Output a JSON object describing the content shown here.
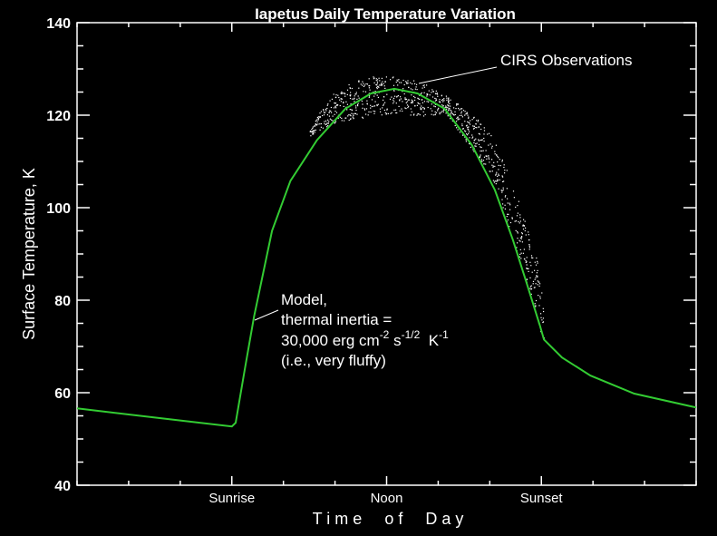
{
  "chart_data": {
    "type": "line",
    "title": "Iapetus Daily Temperature Variation",
    "xlabel": "T i m e     o f     D a y",
    "ylabel": "Surface Temperature, K",
    "xlim": [
      0,
      24
    ],
    "ylim": [
      40,
      140
    ],
    "y_ticks": [
      40,
      60,
      80,
      100,
      120,
      140
    ],
    "y_minor_step": 5,
    "x_ticks": [
      {
        "value": 6,
        "label": "Sunrise"
      },
      {
        "value": 12,
        "label": "Noon"
      },
      {
        "value": 18,
        "label": "Sunset"
      }
    ],
    "x_minor_step": 2,
    "grid": false,
    "colors": {
      "background": "#000000",
      "axes": "#ffffff",
      "model": "#33cc33",
      "observations": "#ffffff"
    },
    "series": [
      {
        "label_lines": [
          "Model,",
          "thermal inertia =",
          "30,000 erg cm^-2 s^-1/2 K^-1",
          "(i.e., very fluffy)"
        ],
        "kind": "line",
        "x": [
          0,
          2,
          4,
          6,
          6.15,
          6.5,
          6.86,
          7.56,
          8.27,
          9.3,
          10.4,
          11.4,
          12.3,
          13.2,
          14.25,
          15.3,
          16.2,
          16.9,
          17.4,
          17.95,
          18.1,
          18.8,
          19.9,
          21.6,
          24
        ],
        "y": [
          56.6,
          55.3,
          54.0,
          52.7,
          53.5,
          65,
          76.4,
          95,
          105.8,
          114.6,
          121.4,
          124.7,
          125.7,
          124.7,
          121.4,
          113.6,
          103.8,
          93,
          84.2,
          74.4,
          71.5,
          67.6,
          63.7,
          59.8,
          56.8
        ]
      },
      {
        "label": "CIRS Observations",
        "kind": "scatter-band",
        "x": [
          9.0,
          10.0,
          11.1,
          12.1,
          13.2,
          14.3,
          15.3,
          16.0,
          16.7,
          17.2,
          17.8,
          18.1
        ],
        "y_low": [
          115.5,
          118.5,
          119.5,
          120.4,
          119.8,
          120.4,
          112.6,
          107.7,
          96,
          88,
          76.4,
          70.5
        ],
        "y_high": [
          117.5,
          125.3,
          128.3,
          128.6,
          127.7,
          124.3,
          120.4,
          116.5,
          107.7,
          100,
          90,
          78
        ]
      }
    ],
    "annotations": {
      "model": {
        "lines": [
          "Model,",
          "thermal inertia =",
          "30,000 erg cm",
          "-2",
          " s",
          "-1/2",
          "  K",
          "-1",
          "(i.e., very fluffy)"
        ],
        "points_to": [
          6.9,
          77
        ]
      },
      "obs": {
        "text": "CIRS Observations",
        "points_to": [
          13.3,
          126.5
        ]
      }
    }
  }
}
